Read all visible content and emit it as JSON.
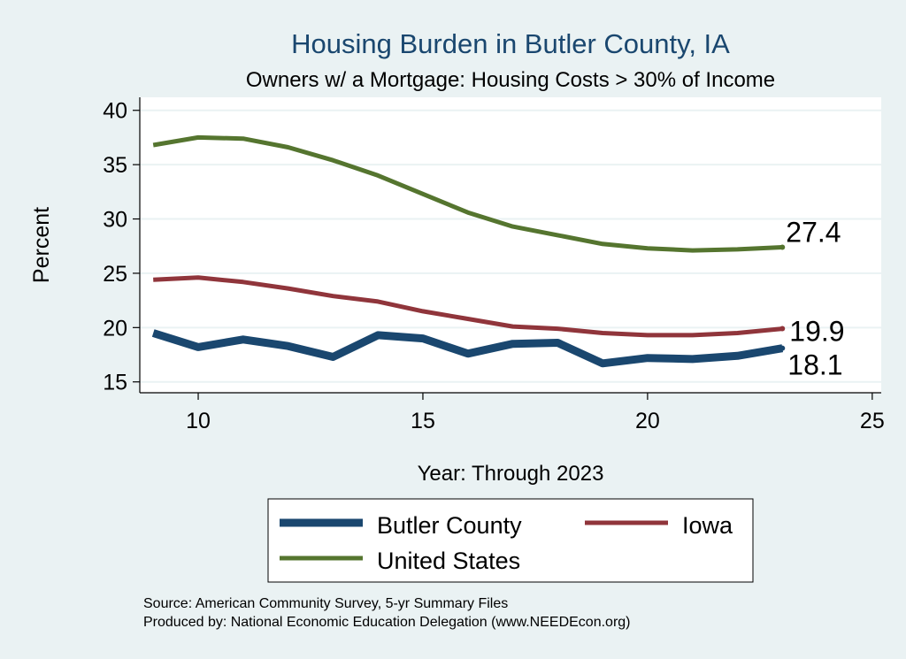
{
  "chart_data": {
    "type": "line",
    "title": "Housing Burden in Butler County, IA",
    "subtitle": "Owners w/ a Mortgage: Housing Costs > 30% of Income",
    "xlabel": "Year: Through 2023",
    "ylabel": "Percent",
    "xlim": [
      8.7,
      25.2
    ],
    "ylim": [
      14.0,
      41.2
    ],
    "xticks": [
      10,
      15,
      20,
      25
    ],
    "yticks": [
      15,
      20,
      25,
      30,
      35,
      40
    ],
    "grid": "horizontal",
    "legend_position": "bottom",
    "x": [
      9,
      10,
      11,
      12,
      13,
      14,
      15,
      16,
      17,
      18,
      19,
      20,
      21,
      22,
      23
    ],
    "series": [
      {
        "name": "Butler County",
        "color": "#1a476f",
        "width": 9,
        "values": [
          19.5,
          18.2,
          18.9,
          18.3,
          17.3,
          19.3,
          19.0,
          17.6,
          18.5,
          18.6,
          16.7,
          17.2,
          17.1,
          17.4,
          18.1
        ],
        "end_label": "18.1"
      },
      {
        "name": "Iowa",
        "color": "#90353b",
        "width": 5,
        "values": [
          24.4,
          24.6,
          24.2,
          23.6,
          22.9,
          22.4,
          21.5,
          20.8,
          20.1,
          19.9,
          19.5,
          19.3,
          19.3,
          19.5,
          19.9
        ],
        "end_label": "19.9"
      },
      {
        "name": "United States",
        "color": "#55752f",
        "width": 5,
        "values": [
          36.8,
          37.5,
          37.4,
          36.6,
          35.4,
          34.0,
          32.3,
          30.6,
          29.3,
          28.5,
          27.7,
          27.3,
          27.1,
          27.2,
          27.4
        ],
        "end_label": "27.4"
      }
    ]
  },
  "footer": {
    "source": "Source: American Community Survey, 5-yr Summary Files",
    "producer": "Produced by: National Economic Education Delegation (www.NEEDEcon.org)"
  },
  "colors": {
    "background": "#eaf2f3",
    "plot_background": "#ffffff",
    "title": "#1a476f",
    "grid": "#eaf2f3"
  }
}
